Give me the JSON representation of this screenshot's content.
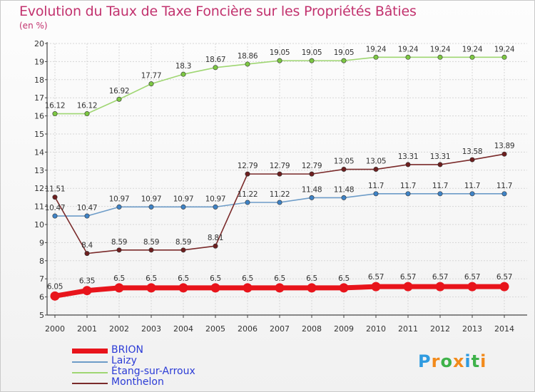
{
  "title": "Evolution du Taux de Taxe Foncière sur les Propriétés Bâties",
  "unit_label": "(en %)",
  "logo": {
    "text": "Proxiti",
    "letters": [
      "P",
      "r",
      "o",
      "x",
      "i",
      "t",
      "i"
    ],
    "letter_colors": [
      "#2f9be0",
      "#f28a1b",
      "#3fb24a",
      "#f28a1b",
      "#2f9be0",
      "#3fb24a",
      "#f28a1b"
    ]
  },
  "chart_data": {
    "type": "line",
    "title": "Evolution du Taux de Taxe Foncière sur les Propriétés Bâties",
    "ylabel": "(en %)",
    "xlabel": "",
    "ylim": [
      5,
      20
    ],
    "yticks": [
      5,
      6,
      7,
      8,
      9,
      10,
      11,
      12,
      13,
      14,
      15,
      16,
      17,
      18,
      19,
      20
    ],
    "grid": true,
    "legend_position": "bottom-left",
    "categories": [
      "2000",
      "2001",
      "2002",
      "2003",
      "2004",
      "2005",
      "2006",
      "2007",
      "2008",
      "2009",
      "2010",
      "2011",
      "2012",
      "2013",
      "2014"
    ],
    "series": [
      {
        "name": "BRION",
        "color": "#e8141b",
        "marker_color": "#e8141b",
        "emphasis": true,
        "values": [
          6.05,
          6.35,
          6.5,
          6.5,
          6.5,
          6.5,
          6.5,
          6.5,
          6.5,
          6.5,
          6.57,
          6.57,
          6.57,
          6.57,
          6.57
        ],
        "labels": [
          "6.05",
          "6.35",
          "6.5",
          "6.5",
          "6.5",
          "6.5",
          "6.5",
          "6.5",
          "6.5",
          "6.5",
          "6.57",
          "6.57",
          "6.57",
          "6.57",
          "6.57"
        ]
      },
      {
        "name": "Laizy",
        "color": "#6d9cc8",
        "marker_color": "#3f83c6",
        "emphasis": false,
        "values": [
          10.47,
          10.47,
          10.97,
          10.97,
          10.97,
          10.97,
          11.22,
          11.22,
          11.48,
          11.48,
          11.7,
          11.7,
          11.7,
          11.7,
          11.7
        ],
        "labels": [
          "10.47",
          "10.47",
          "10.97",
          "10.97",
          "10.97",
          "10.97",
          "11.22",
          "11.22",
          "11.48",
          "11.48",
          "11.7",
          "11.7",
          "11.7",
          "11.7",
          "11.7"
        ]
      },
      {
        "name": "Étang-sur-Arroux",
        "color": "#9fd672",
        "marker_color": "#7dc843",
        "emphasis": false,
        "values": [
          16.12,
          16.12,
          16.92,
          17.77,
          18.3,
          18.67,
          18.86,
          19.05,
          19.05,
          19.05,
          19.24,
          19.24,
          19.24,
          19.24,
          19.24
        ],
        "labels": [
          "16.12",
          "16.12",
          "16.92",
          "17.77",
          "18.3",
          "18.67",
          "18.86",
          "19.05",
          "19.05",
          "19.05",
          "19.24",
          "19.24",
          "19.24",
          "19.24",
          "19.24"
        ]
      },
      {
        "name": "Monthelon",
        "color": "#7a2a2a",
        "marker_color": "#6e1f1f",
        "emphasis": false,
        "values": [
          11.51,
          8.4,
          8.59,
          8.59,
          8.59,
          8.81,
          12.79,
          12.79,
          12.79,
          13.05,
          13.05,
          13.31,
          13.31,
          13.58,
          13.89
        ],
        "labels": [
          "11.51",
          "8.4",
          "8.59",
          "8.59",
          "8.59",
          "8.81",
          "12.79",
          "12.79",
          "12.79",
          "13.05",
          "13.05",
          "13.31",
          "13.31",
          "13.58",
          "13.89"
        ]
      }
    ]
  }
}
